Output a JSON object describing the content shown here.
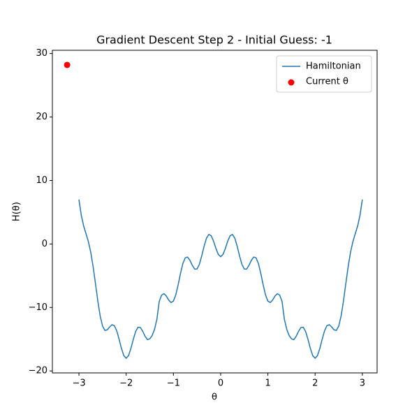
{
  "chart_data": {
    "type": "line",
    "title": "Gradient Descent Step 2 - Initial Guess: -1",
    "xlabel": "θ",
    "ylabel": "H(θ)",
    "xlim": [
      -3.5625,
      3.3125
    ],
    "ylim": [
      -20.31,
      30.51
    ],
    "xticks": [
      {
        "value": -3,
        "label": "−3"
      },
      {
        "value": -2,
        "label": "−2"
      },
      {
        "value": -1,
        "label": "−1"
      },
      0,
      1,
      2,
      3
    ],
    "yticks": [
      {
        "value": -20,
        "label": "−20"
      },
      {
        "value": -10,
        "label": "−10"
      },
      0,
      10,
      20,
      30
    ],
    "grid": false,
    "legend": "upper right",
    "series": [
      {
        "name": "Hamiltonian",
        "type": "line",
        "color": "#1f77b4",
        "x": [
          -3,
          -2.95,
          -2.9,
          -2.85,
          -2.8,
          -2.75,
          -2.7,
          -2.65,
          -2.6,
          -2.55,
          -2.5,
          -2.45,
          -2.4,
          -2.35,
          -2.3,
          -2.25,
          -2.2,
          -2.15,
          -2.1,
          -2.05,
          -2,
          -1.95,
          -1.9,
          -1.85,
          -1.8,
          -1.75,
          -1.7,
          -1.65,
          -1.6,
          -1.55,
          -1.5,
          -1.45,
          -1.4,
          -1.35,
          -1.3,
          -1.25,
          -1.2,
          -1.15,
          -1.1,
          -1.05,
          -1,
          -0.95,
          -0.9,
          -0.85,
          -0.8,
          -0.75,
          -0.7,
          -0.65,
          -0.6,
          -0.55,
          -0.5,
          -0.45,
          -0.4,
          -0.35,
          -0.3,
          -0.25,
          -0.2,
          -0.15,
          -0.1,
          -0.05,
          0,
          0.05,
          0.1,
          0.15,
          0.2,
          0.25,
          0.3,
          0.35,
          0.4,
          0.45,
          0.5,
          0.55,
          0.6,
          0.65,
          0.7,
          0.75,
          0.8,
          0.85,
          0.9,
          0.95,
          1,
          1.05,
          1.1,
          1.15,
          1.2,
          1.25,
          1.3,
          1.35,
          1.4,
          1.45,
          1.5,
          1.55,
          1.6,
          1.65,
          1.7,
          1.75,
          1.8,
          1.85,
          1.9,
          1.95,
          2,
          2.05,
          2.1,
          2.15,
          2.2,
          2.25,
          2.3,
          2.35,
          2.4,
          2.45,
          2.5,
          2.55,
          2.6,
          2.65,
          2.7,
          2.75,
          2.8,
          2.85,
          2.9,
          2.95,
          3
        ],
        "values": [
          7,
          4.5,
          2.83,
          1.61,
          0.36,
          -1.31,
          -3.56,
          -6.25,
          -9,
          -11.36,
          -12.94,
          -13.61,
          -13.52,
          -13.06,
          -12.72,
          -12.87,
          -13.68,
          -14.99,
          -16.45,
          -17.58,
          -18,
          -17.58,
          -16.47,
          -15.05,
          -13.8,
          -13.12,
          -13.15,
          -13.75,
          -14.54,
          -15.07,
          -14.94,
          -14.42,
          -13.46,
          -11.88,
          -9.05,
          -8.06,
          -7.83,
          -8.21,
          -8.83,
          -9.22,
          -9,
          -8.02,
          -6.44,
          -4.64,
          -3.09,
          -2.18,
          -2.06,
          -2.58,
          -3.37,
          -3.95,
          -3.94,
          -3.2,
          -1.87,
          -0.35,
          0.91,
          1.5,
          1.3,
          0.44,
          -0.7,
          -1.64,
          -2,
          -1.64,
          -0.7,
          0.44,
          1.3,
          1.5,
          0.91,
          -0.35,
          -1.87,
          -3.2,
          -3.94,
          -3.95,
          -3.37,
          -2.58,
          -2.06,
          -2.18,
          -3.09,
          -4.64,
          -6.44,
          -8.02,
          -9,
          -9.22,
          -8.83,
          -8.21,
          -7.83,
          -8.06,
          -9.05,
          -11.88,
          -13.46,
          -14.42,
          -14.94,
          -15.07,
          -14.54,
          -13.75,
          -13.15,
          -13.12,
          -13.8,
          -15.05,
          -16.47,
          -17.58,
          -18,
          -17.58,
          -16.45,
          -14.99,
          -13.68,
          -12.87,
          -12.72,
          -13.06,
          -13.52,
          -13.61,
          -12.94,
          -11.36,
          -9,
          -6.25,
          -3.56,
          -1.31,
          0.36,
          1.61,
          2.83,
          4.5,
          7
        ]
      },
      {
        "name": "Current θ",
        "type": "scatter",
        "color": "#ff0000",
        "x": [
          -3.25
        ],
        "values": [
          28.2
        ]
      }
    ]
  }
}
